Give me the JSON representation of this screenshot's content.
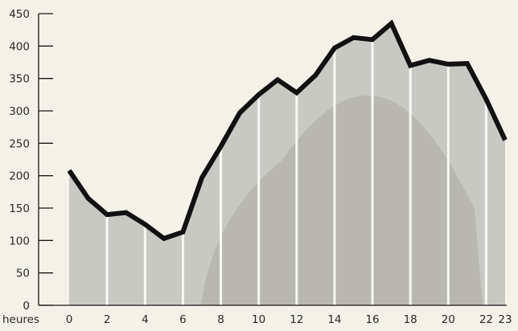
{
  "chart_data": {
    "type": "area",
    "title": "",
    "xlabel": "heures",
    "ylabel": "",
    "xlim": [
      0,
      23
    ],
    "ylim": [
      0,
      450
    ],
    "grid": false,
    "x_tick_labels": [
      "0",
      "2",
      "4",
      "6",
      "8",
      "10",
      "12",
      "14",
      "16",
      "18",
      "20",
      "22",
      "23"
    ],
    "y_tick_labels": [
      "0",
      "50",
      "100",
      "150",
      "200",
      "250",
      "300",
      "350",
      "400",
      "450"
    ],
    "series": [
      {
        "x": [
          0,
          1,
          2,
          3,
          4,
          5,
          6,
          7,
          8,
          9,
          10,
          11,
          12,
          13,
          14,
          15,
          16,
          17,
          18,
          19,
          20,
          21,
          22,
          23
        ],
        "values": [
          208,
          165,
          140,
          143,
          125,
          103,
          113,
          197,
          245,
          297,
          325,
          348,
          328,
          355,
          397,
          413,
          410,
          435,
          370,
          378,
          372,
          373,
          318,
          255
        ]
      }
    ],
    "colors": {
      "line": "#111111",
      "fill": "#c9c9c3",
      "background": "#f4f1e8",
      "bands": "#f8f8f4"
    }
  }
}
